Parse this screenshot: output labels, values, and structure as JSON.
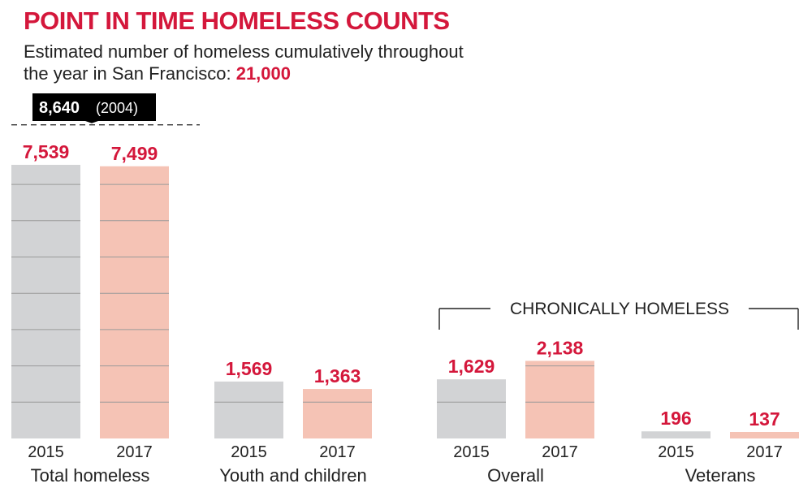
{
  "title": "POINT IN TIME HOMELESS COUNTS",
  "subtitle": {
    "text": "Estimated number of homeless cumulatively throughout the year in San Francisco:",
    "highlight": "21,000"
  },
  "callout": {
    "value": "8,640",
    "year": "(2004)",
    "y": 8640
  },
  "bracket_label": "CHRONICALLY HOMELESS",
  "colors": {
    "accent": "#d4173b",
    "bar_2015": "#d2d3d5",
    "bar_2017": "#f5c3b5",
    "gridline": "#9a9a9a",
    "callout_bg": "#000000"
  },
  "chart_data": {
    "type": "bar",
    "title": "POINT IN TIME HOMELESS COUNTS",
    "xlabel": "",
    "ylabel": "",
    "grid": true,
    "categories": [
      "Total homeless",
      "Youth and children",
      "Overall",
      "Veterans"
    ],
    "series": [
      {
        "name": "2015",
        "values": [
          7539,
          1569,
          1629,
          196
        ]
      },
      {
        "name": "2017",
        "values": [
          7499,
          1363,
          2138,
          137
        ]
      }
    ],
    "labels": [
      [
        "7,539",
        "7,499"
      ],
      [
        "1,569",
        "1,363"
      ],
      [
        "1,629",
        "2,138"
      ],
      [
        "196",
        "137"
      ]
    ],
    "reference_line": {
      "value": 8640,
      "label": "8,640 (2004)"
    },
    "group_annotation": {
      "label": "CHRONICALLY HOMELESS",
      "categories": [
        "Overall",
        "Veterans"
      ]
    }
  }
}
